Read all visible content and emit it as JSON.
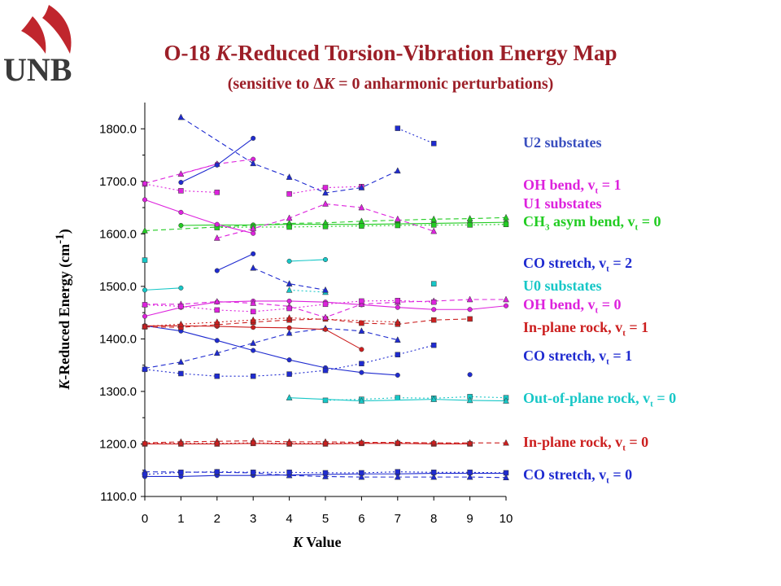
{
  "logo": {
    "text": "UNB",
    "icon": "sail-logo-icon",
    "color": "#c0262d"
  },
  "header": {
    "title_a": "O-18 ",
    "title_k": "K",
    "title_b": "-Reduced Torsion-Vibration Energy Map",
    "subtitle_a": "(sensitive to ",
    "subtitle_delta": "Δ",
    "subtitle_k": "K",
    "subtitle_b": " = 0 anharmonic perturbations)"
  },
  "chart_data": {
    "type": "scatter",
    "xlabel_k": "K",
    "xlabel_rest": " Value",
    "ylabel_k": "K",
    "ylabel_rest": "-Reduced Energy (cm",
    "ylabel_sup": "-1",
    "ylabel_close": ")",
    "xlim": [
      0,
      10
    ],
    "ylim": [
      1100,
      1850
    ],
    "xticks": [
      "0",
      "1",
      "2",
      "3",
      "4",
      "5",
      "6",
      "7",
      "8",
      "9",
      "10"
    ],
    "yticks": [
      "1100.0",
      "1200.0",
      "1300.0",
      "1400.0",
      "1500.0",
      "1600.0",
      "1700.0",
      "1800.0"
    ],
    "series": [
      {
        "color": "#1f2bd0",
        "marker": "circle",
        "dash": "",
        "points": [
          [
            0,
            1138
          ],
          [
            1,
            1138
          ],
          [
            2,
            1140
          ],
          [
            3,
            1140
          ],
          [
            4,
            1141
          ],
          [
            5,
            1142
          ],
          [
            6,
            1143
          ],
          [
            7,
            1143
          ],
          [
            8,
            1144
          ],
          [
            9,
            1144
          ],
          [
            10,
            1144
          ]
        ]
      },
      {
        "color": "#1f2bd0",
        "marker": "triangle",
        "dash": "6 4",
        "points": [
          [
            0,
            1147
          ],
          [
            2,
            1146
          ],
          [
            3,
            1145
          ],
          [
            4,
            1140
          ],
          [
            5,
            1138
          ],
          [
            6,
            1137
          ],
          [
            7,
            1137
          ],
          [
            8,
            1137
          ],
          [
            9,
            1137
          ],
          [
            10,
            1136
          ]
        ]
      },
      {
        "color": "#1f2bd0",
        "marker": "square",
        "dash": "2 3",
        "points": [
          [
            0,
            1142
          ],
          [
            1,
            1146
          ],
          [
            2,
            1147
          ],
          [
            3,
            1146
          ],
          [
            4,
            1146
          ],
          [
            5,
            1145
          ],
          [
            6,
            1145
          ],
          [
            7,
            1147
          ],
          [
            8,
            1146
          ],
          [
            9,
            1146
          ],
          [
            10,
            1145
          ]
        ]
      },
      {
        "color": "#cc1f1f",
        "marker": "square",
        "dash": "",
        "points": [
          [
            0,
            1200
          ],
          [
            1,
            1200
          ],
          [
            2,
            1200
          ],
          [
            3,
            1201
          ],
          [
            4,
            1200
          ],
          [
            5,
            1200
          ],
          [
            6,
            1201
          ],
          [
            7,
            1201
          ],
          [
            8,
            1200
          ],
          [
            9,
            1200
          ]
        ]
      },
      {
        "color": "#cc1f1f",
        "marker": "triangle",
        "dash": "6 4",
        "points": [
          [
            0,
            1202
          ],
          [
            1,
            1204
          ],
          [
            2,
            1205
          ],
          [
            3,
            1206
          ],
          [
            4,
            1204
          ],
          [
            5,
            1204
          ],
          [
            6,
            1203
          ],
          [
            7,
            1203
          ],
          [
            8,
            1202
          ],
          [
            9,
            1202
          ],
          [
            10,
            1202
          ]
        ]
      },
      {
        "color": "#cc1f1f",
        "marker": "circle",
        "dash": "2 3",
        "points": [
          [
            0,
            1201
          ],
          [
            1,
            1201
          ],
          [
            2,
            1201
          ],
          [
            3,
            1202
          ],
          [
            4,
            1201
          ],
          [
            5,
            1201
          ],
          [
            6,
            1202
          ],
          [
            7,
            1202
          ],
          [
            8,
            1202
          ],
          [
            9,
            1201
          ]
        ]
      },
      {
        "color": "#17c7c7",
        "marker": "square",
        "dash": "2 3",
        "points": [
          [
            5,
            1283
          ],
          [
            6,
            1285
          ],
          [
            7,
            1288
          ],
          [
            8,
            1287
          ],
          [
            9,
            1290
          ],
          [
            10,
            1288
          ]
        ]
      },
      {
        "color": "#17c7c7",
        "marker": "triangle",
        "dash": "",
        "points": [
          [
            4,
            1288
          ],
          [
            6,
            1282
          ],
          [
            8,
            1285
          ],
          [
            9,
            1283
          ],
          [
            10,
            1282
          ]
        ]
      },
      {
        "color": "#1f2bd0",
        "marker": "circle",
        "dash": "",
        "points": [
          [
            0,
            1425
          ],
          [
            1,
            1415
          ],
          [
            2,
            1397
          ],
          [
            3,
            1378
          ],
          [
            4,
            1360
          ],
          [
            5,
            1345
          ],
          [
            6,
            1336
          ],
          [
            7,
            1331
          ]
        ]
      },
      {
        "color": "#1f2bd0",
        "marker": "triangle",
        "dash": "6 4",
        "points": [
          [
            0,
            1344
          ],
          [
            1,
            1356
          ],
          [
            2,
            1373
          ],
          [
            3,
            1392
          ],
          [
            4,
            1411
          ],
          [
            5,
            1420
          ],
          [
            6,
            1415
          ],
          [
            7,
            1398
          ]
        ]
      },
      {
        "color": "#1f2bd0",
        "marker": "square",
        "dash": "2 3",
        "points": [
          [
            0,
            1342
          ],
          [
            1,
            1334
          ],
          [
            2,
            1329
          ],
          [
            3,
            1329
          ],
          [
            4,
            1333
          ],
          [
            5,
            1340
          ],
          [
            6,
            1353
          ],
          [
            7,
            1370
          ],
          [
            8,
            1388
          ]
        ]
      },
      {
        "color": "#1f2bd0",
        "marker": "circle",
        "dash": "",
        "points": [
          [
            9,
            1332
          ]
        ]
      },
      {
        "color": "#cc1f1f",
        "marker": "circle",
        "dash": "",
        "points": [
          [
            0,
            1425
          ],
          [
            1,
            1425
          ],
          [
            2,
            1424
          ],
          [
            3,
            1422
          ],
          [
            4,
            1421
          ],
          [
            5,
            1418
          ],
          [
            6,
            1380
          ]
        ]
      },
      {
        "color": "#cc1f1f",
        "marker": "square",
        "dash": "6 4",
        "points": [
          [
            0,
            1423
          ],
          [
            1,
            1422
          ],
          [
            2,
            1427
          ],
          [
            3,
            1432
          ],
          [
            4,
            1436
          ],
          [
            5,
            1438
          ],
          [
            6,
            1430
          ],
          [
            7,
            1428
          ],
          [
            8,
            1436
          ],
          [
            9,
            1438
          ]
        ]
      },
      {
        "color": "#cc1f1f",
        "marker": "triangle",
        "dash": "2 3",
        "points": [
          [
            0,
            1424
          ],
          [
            1,
            1428
          ],
          [
            2,
            1432
          ],
          [
            3,
            1436
          ],
          [
            4,
            1440
          ],
          [
            7,
            1432
          ]
        ]
      },
      {
        "color": "#dd22dd",
        "marker": "circle",
        "dash": "",
        "points": [
          [
            0,
            1443
          ],
          [
            1,
            1460
          ],
          [
            2,
            1470
          ],
          [
            3,
            1472
          ],
          [
            4,
            1472
          ],
          [
            5,
            1470
          ],
          [
            6,
            1465
          ],
          [
            7,
            1460
          ],
          [
            8,
            1456
          ],
          [
            9,
            1456
          ],
          [
            10,
            1463
          ]
        ]
      },
      {
        "color": "#dd22dd",
        "marker": "triangle",
        "dash": "6 4",
        "points": [
          [
            0,
            1466
          ],
          [
            1,
            1466
          ],
          [
            2,
            1471
          ],
          [
            3,
            1468
          ],
          [
            4,
            1462
          ],
          [
            5,
            1441
          ],
          [
            6,
            1466
          ],
          [
            7,
            1470
          ],
          [
            8,
            1472
          ],
          [
            9,
            1475
          ],
          [
            10,
            1475
          ]
        ]
      },
      {
        "color": "#dd22dd",
        "marker": "square",
        "dash": "2 3",
        "points": [
          [
            0,
            1465
          ],
          [
            1,
            1462
          ],
          [
            2,
            1455
          ],
          [
            3,
            1452
          ],
          [
            4,
            1458
          ],
          [
            5,
            1466
          ],
          [
            6,
            1472
          ],
          [
            7,
            1473
          ],
          [
            8,
            1470
          ]
        ]
      },
      {
        "color": "#17c7c7",
        "marker": "circle",
        "dash": "",
        "points": [
          [
            0,
            1493
          ],
          [
            1,
            1497
          ]
        ]
      },
      {
        "color": "#17c7c7",
        "marker": "circle",
        "dash": "",
        "points": [
          [
            4,
            1548
          ],
          [
            5,
            1551
          ]
        ]
      },
      {
        "color": "#17c7c7",
        "marker": "triangle",
        "dash": "2 3",
        "points": [
          [
            4,
            1493
          ],
          [
            5,
            1489
          ]
        ]
      },
      {
        "color": "#17c7c7",
        "marker": "square",
        "dash": "",
        "points": [
          [
            8,
            1505
          ]
        ]
      },
      {
        "color": "#17c7c7",
        "marker": "square",
        "dash": "",
        "points": [
          [
            0,
            1550
          ]
        ]
      },
      {
        "color": "#1f2bd0",
        "marker": "circle",
        "dash": "",
        "points": [
          [
            2,
            1530
          ],
          [
            3,
            1562
          ]
        ]
      },
      {
        "color": "#1f2bd0",
        "marker": "triangle",
        "dash": "6 4",
        "points": [
          [
            3,
            1535
          ],
          [
            4,
            1505
          ],
          [
            5,
            1493
          ]
        ]
      },
      {
        "color": "#22cc22",
        "marker": "circle",
        "dash": "",
        "points": [
          [
            1,
            1616
          ],
          [
            2,
            1617
          ],
          [
            3,
            1617
          ],
          [
            4,
            1618
          ],
          [
            5,
            1618
          ],
          [
            6,
            1618
          ],
          [
            7,
            1619
          ],
          [
            8,
            1620
          ],
          [
            9,
            1621
          ],
          [
            10,
            1622
          ]
        ]
      },
      {
        "color": "#22cc22",
        "marker": "triangle",
        "dash": "6 4",
        "points": [
          [
            0,
            1606
          ],
          [
            4,
            1620
          ],
          [
            5,
            1621
          ],
          [
            6,
            1624
          ],
          [
            7,
            1626
          ],
          [
            8,
            1628
          ],
          [
            9,
            1629
          ],
          [
            10,
            1631
          ]
        ]
      },
      {
        "color": "#22cc22",
        "marker": "square",
        "dash": "2 3",
        "points": [
          [
            2,
            1612
          ],
          [
            3,
            1613
          ],
          [
            4,
            1613
          ],
          [
            5,
            1614
          ],
          [
            6,
            1615
          ],
          [
            7,
            1616
          ],
          [
            8,
            1617
          ],
          [
            9,
            1617
          ],
          [
            10,
            1618
          ]
        ]
      },
      {
        "color": "#dd22dd",
        "marker": "circle",
        "dash": "",
        "points": [
          [
            0,
            1665
          ],
          [
            1,
            1641
          ],
          [
            2,
            1618
          ],
          [
            3,
            1601
          ]
        ]
      },
      {
        "color": "#dd22dd",
        "marker": "triangle",
        "dash": "6 4",
        "points": [
          [
            2,
            1592
          ],
          [
            3,
            1610
          ],
          [
            4,
            1630
          ],
          [
            5,
            1657
          ],
          [
            6,
            1650
          ],
          [
            7,
            1628
          ],
          [
            8,
            1605
          ]
        ]
      },
      {
        "color": "#dd22dd",
        "marker": "square",
        "dash": "2 3",
        "points": [
          [
            0,
            1695
          ],
          [
            1,
            1682
          ],
          [
            2,
            1679
          ]
        ]
      },
      {
        "color": "#dd22dd",
        "marker": "circle",
        "dash": "6 4",
        "points": [
          [
            0,
            1696
          ],
          [
            2,
            1733
          ],
          [
            3,
            1742
          ]
        ]
      },
      {
        "color": "#dd22dd",
        "marker": "triangle",
        "dash": "6 4",
        "points": [
          [
            1,
            1714
          ],
          [
            2,
            1733
          ]
        ]
      },
      {
        "color": "#dd22dd",
        "marker": "square",
        "dash": "2 3",
        "points": [
          [
            4,
            1676
          ],
          [
            5,
            1688
          ],
          [
            6,
            1690
          ]
        ]
      },
      {
        "color": "#1f2bd0",
        "marker": "circle",
        "dash": "",
        "points": [
          [
            1,
            1698
          ],
          [
            2,
            1731
          ],
          [
            3,
            1782
          ]
        ]
      },
      {
        "color": "#1f2bd0",
        "marker": "triangle",
        "dash": "6 4",
        "points": [
          [
            1,
            1822
          ],
          [
            3,
            1734
          ],
          [
            4,
            1708
          ],
          [
            5,
            1678
          ],
          [
            6,
            1688
          ],
          [
            7,
            1720
          ]
        ]
      },
      {
        "color": "#1f2bd0",
        "marker": "square",
        "dash": "2 3",
        "points": [
          [
            7,
            1801
          ],
          [
            8,
            1772
          ]
        ]
      }
    ]
  },
  "legend": [
    {
      "text": "U2 substates",
      "color": "#3a4fbf"
    },
    {
      "text": "OH bend, v",
      "sub": "t",
      "rest": " = 1",
      "color": "#dd22dd"
    },
    {
      "text": "U1 substates",
      "color": "#dd22dd"
    },
    {
      "text": "CH",
      "sub": "3",
      "rest": " asym bend, v",
      "sub2": "t",
      "rest2": " = 0",
      "color": "#22cc22"
    },
    {
      "text": "CO stretch, v",
      "sub": "t",
      "rest": " = 2",
      "color": "#1f2bd0"
    },
    {
      "text": "U0 substates",
      "color": "#17c7c7"
    },
    {
      "text": "OH bend, v",
      "sub": "t",
      "rest": " = 0",
      "color": "#dd22dd"
    },
    {
      "text": "In-plane rock, v",
      "sub": "t",
      "rest": " = 1",
      "color": "#cc1f1f"
    },
    {
      "text": "CO stretch, v",
      "sub": "t",
      "rest": " = 1",
      "color": "#1f2bd0"
    },
    {
      "text": "Out-of-plane rock, v",
      "sub": "t",
      "rest": " = 0",
      "color": "#17c7c7"
    },
    {
      "text": "In-plane rock, v",
      "sub": "t",
      "rest": " = 0",
      "color": "#cc1f1f"
    },
    {
      "text": "CO stretch, v",
      "sub": "t",
      "rest": " = 0",
      "color": "#1f2bd0"
    }
  ]
}
